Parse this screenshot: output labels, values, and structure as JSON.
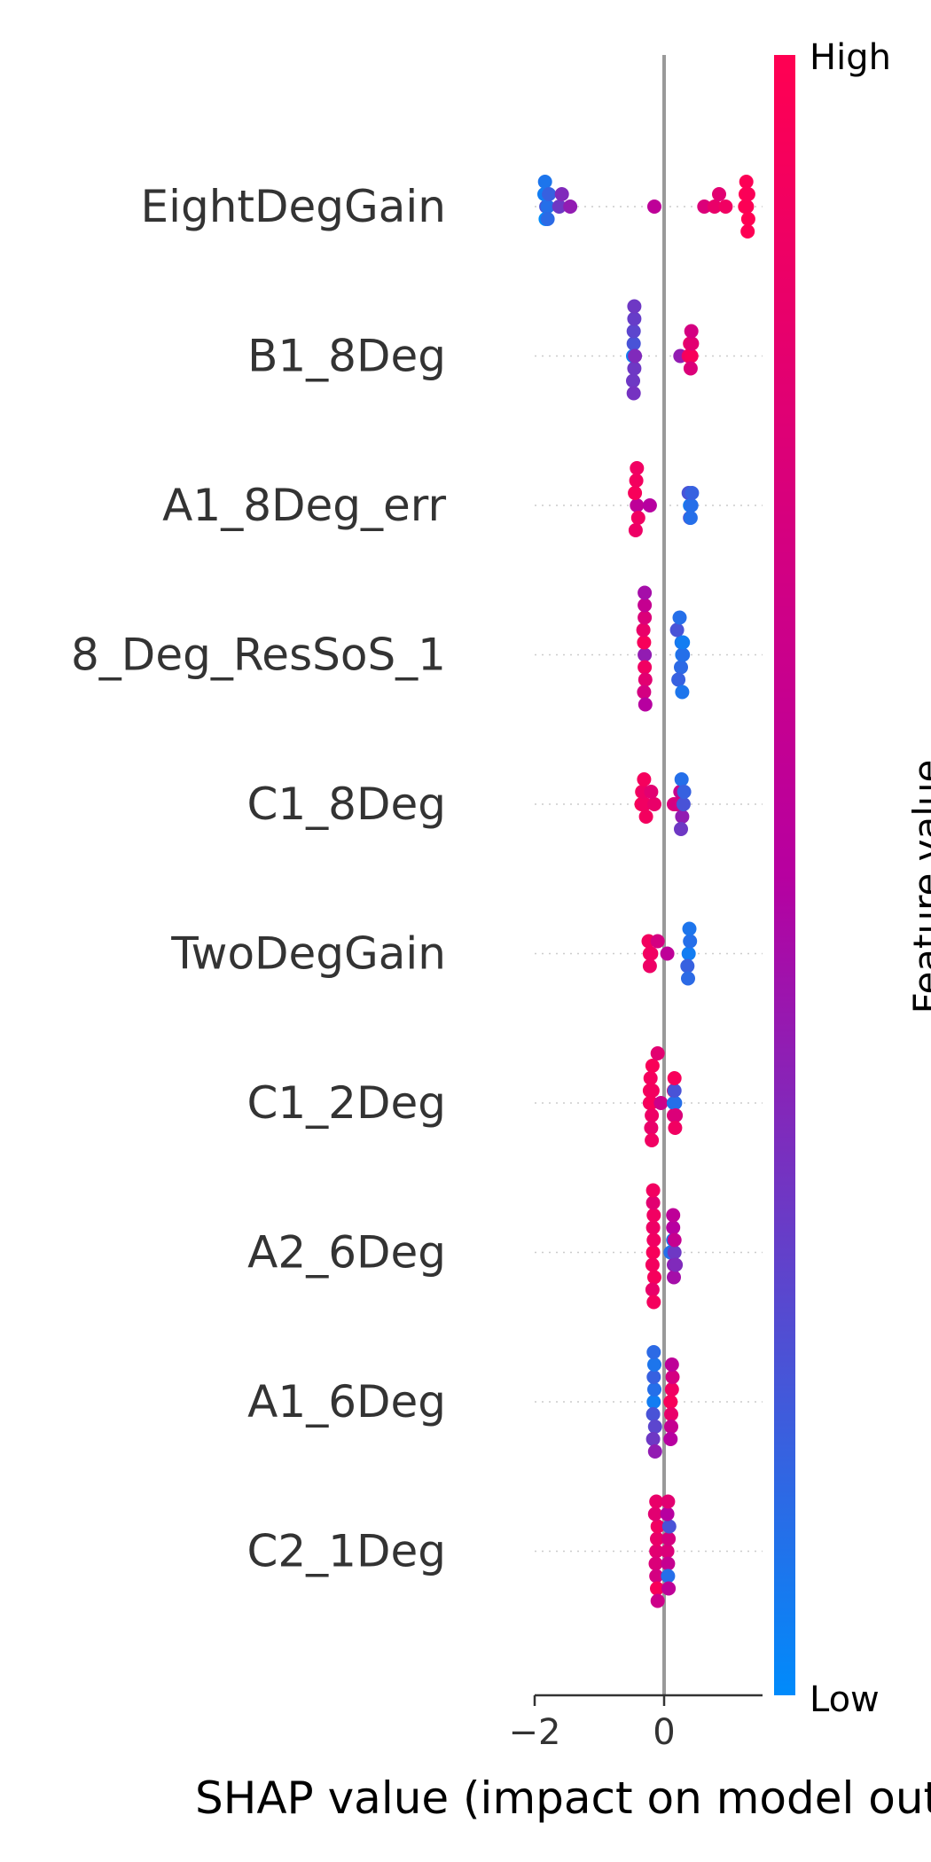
{
  "chart_data": {
    "type": "scatter",
    "subtype": "shap-beeswarm",
    "xlabel": "SHAP value (impact on model output)",
    "x_ticks": [
      -2,
      0
    ],
    "x_tick_labels": [
      "−2",
      "0"
    ],
    "xlim": [
      -2.0,
      1.5
    ],
    "colorbar": {
      "label": "Feature value",
      "high_label": "High",
      "low_label": "Low",
      "high_color": "#ff0052",
      "mid_color": "#b700a0",
      "low_color": "#008bfb"
    },
    "features": [
      {
        "name": "EightDegGain",
        "points": [
          {
            "x": -1.82,
            "v": 0.2
          },
          {
            "x": -1.85,
            "v": 0.05
          },
          {
            "x": -1.83,
            "v": 0.0
          },
          {
            "x": -1.8,
            "v": 0.1
          },
          {
            "x": -1.78,
            "v": 0.15
          },
          {
            "x": -1.84,
            "v": 0.08
          },
          {
            "x": -1.8,
            "v": 0.12
          },
          {
            "x": -1.62,
            "v": 0.3
          },
          {
            "x": -1.58,
            "v": 0.35
          },
          {
            "x": -1.45,
            "v": 0.4
          },
          {
            "x": -0.15,
            "v": 0.55
          },
          {
            "x": 0.62,
            "v": 0.75
          },
          {
            "x": 0.78,
            "v": 0.85
          },
          {
            "x": 0.85,
            "v": 0.8
          },
          {
            "x": 0.95,
            "v": 0.9
          },
          {
            "x": 1.25,
            "v": 1.0
          },
          {
            "x": 1.28,
            "v": 0.98
          },
          {
            "x": 1.3,
            "v": 0.97
          },
          {
            "x": 1.26,
            "v": 0.99
          },
          {
            "x": 1.3,
            "v": 1.0
          },
          {
            "x": 1.27,
            "v": 0.98
          },
          {
            "x": 1.29,
            "v": 0.99
          }
        ]
      },
      {
        "name": "B1_8Deg",
        "points": [
          {
            "x": -0.48,
            "v": 0.05
          },
          {
            "x": -0.47,
            "v": 0.2
          },
          {
            "x": -0.46,
            "v": 0.3
          },
          {
            "x": -0.47,
            "v": 0.25
          },
          {
            "x": -0.45,
            "v": 0.35
          },
          {
            "x": -0.48,
            "v": 0.3
          },
          {
            "x": -0.46,
            "v": 0.28
          },
          {
            "x": -0.47,
            "v": 0.32
          },
          {
            "x": -0.46,
            "v": 0.3
          },
          {
            "x": 0.25,
            "v": 0.4
          },
          {
            "x": 0.38,
            "v": 0.9
          },
          {
            "x": 0.42,
            "v": 0.95
          },
          {
            "x": 0.4,
            "v": 0.85
          },
          {
            "x": 0.43,
            "v": 0.8
          },
          {
            "x": 0.41,
            "v": 0.75
          },
          {
            "x": 0.42,
            "v": 0.7
          }
        ]
      },
      {
        "name": "A1_8Deg_err",
        "points": [
          {
            "x": -0.42,
            "v": 0.55
          },
          {
            "x": -0.45,
            "v": 0.95
          },
          {
            "x": -0.4,
            "v": 0.9
          },
          {
            "x": -0.43,
            "v": 0.92
          },
          {
            "x": -0.22,
            "v": 0.5
          },
          {
            "x": -0.44,
            "v": 0.88
          },
          {
            "x": -0.42,
            "v": 0.9
          },
          {
            "x": 0.4,
            "v": 0.05
          },
          {
            "x": 0.42,
            "v": 0.1
          },
          {
            "x": 0.38,
            "v": 0.2
          },
          {
            "x": 0.43,
            "v": 0.15
          },
          {
            "x": 0.4,
            "v": 0.25
          },
          {
            "x": 0.41,
            "v": 0.1
          }
        ]
      },
      {
        "name": "8_Deg_ResSoS_1",
        "points": [
          {
            "x": -0.3,
            "v": 0.4
          },
          {
            "x": -0.31,
            "v": 0.95
          },
          {
            "x": -0.3,
            "v": 0.9
          },
          {
            "x": -0.32,
            "v": 0.85
          },
          {
            "x": -0.29,
            "v": 0.8
          },
          {
            "x": -0.3,
            "v": 0.75
          },
          {
            "x": -0.31,
            "v": 0.7
          },
          {
            "x": -0.3,
            "v": 0.6
          },
          {
            "x": -0.29,
            "v": 0.5
          },
          {
            "x": -0.3,
            "v": 0.45
          },
          {
            "x": 0.28,
            "v": 0.05
          },
          {
            "x": 0.27,
            "v": 0.08
          },
          {
            "x": 0.29,
            "v": 0.1
          },
          {
            "x": 0.26,
            "v": 0.12
          },
          {
            "x": 0.2,
            "v": 0.2
          },
          {
            "x": 0.22,
            "v": 0.15
          },
          {
            "x": 0.24,
            "v": 0.1
          },
          {
            "x": 0.28,
            "v": 0.08
          },
          {
            "x": 0.29,
            "v": 0.05
          }
        ]
      },
      {
        "name": "C1_8Deg",
        "points": [
          {
            "x": -0.35,
            "v": 0.95
          },
          {
            "x": -0.3,
            "v": 0.9
          },
          {
            "x": -0.32,
            "v": 0.88
          },
          {
            "x": -0.28,
            "v": 0.92
          },
          {
            "x": -0.15,
            "v": 0.85
          },
          {
            "x": -0.34,
            "v": 0.95
          },
          {
            "x": -0.31,
            "v": 0.93
          },
          {
            "x": -0.2,
            "v": 0.8
          },
          {
            "x": 0.15,
            "v": 0.75
          },
          {
            "x": 0.2,
            "v": 0.7
          },
          {
            "x": 0.25,
            "v": 0.6
          },
          {
            "x": 0.3,
            "v": 0.2
          },
          {
            "x": 0.28,
            "v": 0.4
          },
          {
            "x": 0.27,
            "v": 0.1
          },
          {
            "x": 0.26,
            "v": 0.3
          },
          {
            "x": 0.31,
            "v": 0.15
          }
        ]
      },
      {
        "name": "TwoDegGain",
        "points": [
          {
            "x": -0.22,
            "v": 0.95
          },
          {
            "x": -0.24,
            "v": 0.92
          },
          {
            "x": -0.2,
            "v": 0.9
          },
          {
            "x": -0.22,
            "v": 0.88
          },
          {
            "x": -0.1,
            "v": 0.7
          },
          {
            "x": 0.05,
            "v": 0.55
          },
          {
            "x": 0.38,
            "v": 0.05
          },
          {
            "x": 0.4,
            "v": 0.1
          },
          {
            "x": 0.36,
            "v": 0.15
          },
          {
            "x": 0.39,
            "v": 0.08
          },
          {
            "x": 0.37,
            "v": 0.12
          }
        ]
      },
      {
        "name": "C1_2Deg",
        "points": [
          {
            "x": -0.2,
            "v": 0.95
          },
          {
            "x": -0.18,
            "v": 0.92
          },
          {
            "x": -0.22,
            "v": 0.9
          },
          {
            "x": -0.19,
            "v": 0.88
          },
          {
            "x": -0.21,
            "v": 0.93
          },
          {
            "x": -0.2,
            "v": 0.85
          },
          {
            "x": -0.18,
            "v": 0.96
          },
          {
            "x": -0.22,
            "v": 0.94
          },
          {
            "x": -0.19,
            "v": 0.9
          },
          {
            "x": -0.1,
            "v": 0.8
          },
          {
            "x": -0.05,
            "v": 0.65
          },
          {
            "x": 0.15,
            "v": 0.05
          },
          {
            "x": 0.17,
            "v": 0.1
          },
          {
            "x": 0.16,
            "v": 0.2
          },
          {
            "x": 0.18,
            "v": 0.75
          },
          {
            "x": 0.15,
            "v": 0.85
          },
          {
            "x": 0.16,
            "v": 0.95
          },
          {
            "x": 0.17,
            "v": 0.9
          },
          {
            "x": 0.15,
            "v": 0.8
          }
        ]
      },
      {
        "name": "A2_6Deg",
        "points": [
          {
            "x": -0.17,
            "v": 0.95
          },
          {
            "x": -0.16,
            "v": 0.9
          },
          {
            "x": -0.18,
            "v": 0.92
          },
          {
            "x": -0.17,
            "v": 0.88
          },
          {
            "x": -0.15,
            "v": 0.94
          },
          {
            "x": -0.16,
            "v": 0.9
          },
          {
            "x": -0.18,
            "v": 0.85
          },
          {
            "x": -0.17,
            "v": 0.8
          },
          {
            "x": -0.16,
            "v": 0.93
          },
          {
            "x": -0.17,
            "v": 0.91
          },
          {
            "x": 0.1,
            "v": 0.1
          },
          {
            "x": 0.14,
            "v": 0.05
          },
          {
            "x": 0.16,
            "v": 0.3
          },
          {
            "x": 0.15,
            "v": 0.4
          },
          {
            "x": 0.14,
            "v": 0.5
          },
          {
            "x": 0.16,
            "v": 0.6
          },
          {
            "x": 0.15,
            "v": 0.45
          },
          {
            "x": 0.18,
            "v": 0.35
          },
          {
            "x": 0.14,
            "v": 0.55
          }
        ]
      },
      {
        "name": "A1_6Deg",
        "points": [
          {
            "x": -0.16,
            "v": 0.05
          },
          {
            "x": -0.15,
            "v": 0.1
          },
          {
            "x": -0.17,
            "v": 0.2
          },
          {
            "x": -0.16,
            "v": 0.15
          },
          {
            "x": -0.14,
            "v": 0.25
          },
          {
            "x": -0.15,
            "v": 0.08
          },
          {
            "x": -0.17,
            "v": 0.3
          },
          {
            "x": -0.16,
            "v": 0.12
          },
          {
            "x": -0.14,
            "v": 0.4
          },
          {
            "x": 0.1,
            "v": 0.95
          },
          {
            "x": 0.12,
            "v": 0.9
          },
          {
            "x": 0.11,
            "v": 0.85
          },
          {
            "x": 0.13,
            "v": 0.7
          },
          {
            "x": 0.11,
            "v": 0.6
          },
          {
            "x": 0.12,
            "v": 0.55
          },
          {
            "x": 0.1,
            "v": 0.5
          }
        ]
      },
      {
        "name": "C2_1Deg",
        "points": [
          {
            "x": -0.12,
            "v": 0.8
          },
          {
            "x": -0.11,
            "v": 0.85
          },
          {
            "x": -0.13,
            "v": 0.75
          },
          {
            "x": -0.1,
            "v": 0.9
          },
          {
            "x": -0.12,
            "v": 0.7
          },
          {
            "x": -0.14,
            "v": 0.8
          },
          {
            "x": -0.11,
            "v": 0.95
          },
          {
            "x": -0.12,
            "v": 0.85
          },
          {
            "x": -0.1,
            "v": 0.65
          },
          {
            "x": 0.05,
            "v": 0.75
          },
          {
            "x": 0.07,
            "v": 0.7
          },
          {
            "x": 0.06,
            "v": 0.6
          },
          {
            "x": 0.08,
            "v": 0.2
          },
          {
            "x": 0.06,
            "v": 0.1
          },
          {
            "x": 0.05,
            "v": 0.5
          },
          {
            "x": 0.07,
            "v": 0.55
          },
          {
            "x": 0.06,
            "v": 0.8
          }
        ]
      }
    ]
  }
}
